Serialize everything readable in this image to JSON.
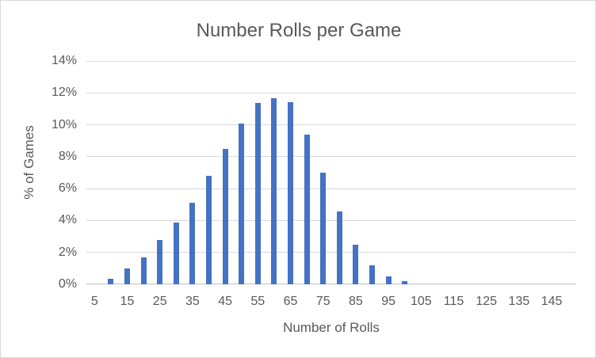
{
  "chart_data": {
    "type": "bar",
    "title": "Number Rolls per Game",
    "xlabel": "Number of Rolls",
    "ylabel": "% of Games",
    "x": [
      10,
      15,
      20,
      25,
      30,
      35,
      40,
      45,
      50,
      55,
      60,
      65,
      70,
      75,
      80,
      85,
      90,
      95,
      100
    ],
    "values_pct": [
      0.35,
      1.0,
      1.7,
      2.8,
      3.85,
      5.1,
      6.8,
      8.5,
      10.1,
      11.35,
      11.65,
      11.4,
      9.4,
      7.0,
      4.55,
      2.5,
      1.2,
      0.5,
      0.2
    ],
    "x_axis": {
      "first_category": 5,
      "last_category": 150,
      "category_step": 5,
      "tick_labels": [
        "5",
        "15",
        "25",
        "35",
        "45",
        "55",
        "65",
        "75",
        "85",
        "95",
        "105",
        "115",
        "125",
        "135",
        "145"
      ]
    },
    "y_axis": {
      "min": 0,
      "max": 14,
      "step": 2,
      "tick_labels": [
        "0%",
        "2%",
        "4%",
        "6%",
        "8%",
        "10%",
        "12%",
        "14%"
      ]
    },
    "grid": true,
    "legend": "none",
    "colors": {
      "bar": "#4472C4",
      "gridline": "#D9D9D9",
      "axis_line": "#BFBFBF",
      "text": "#595959",
      "background": "#FFFFFF",
      "border": "#D9D9D9"
    }
  }
}
